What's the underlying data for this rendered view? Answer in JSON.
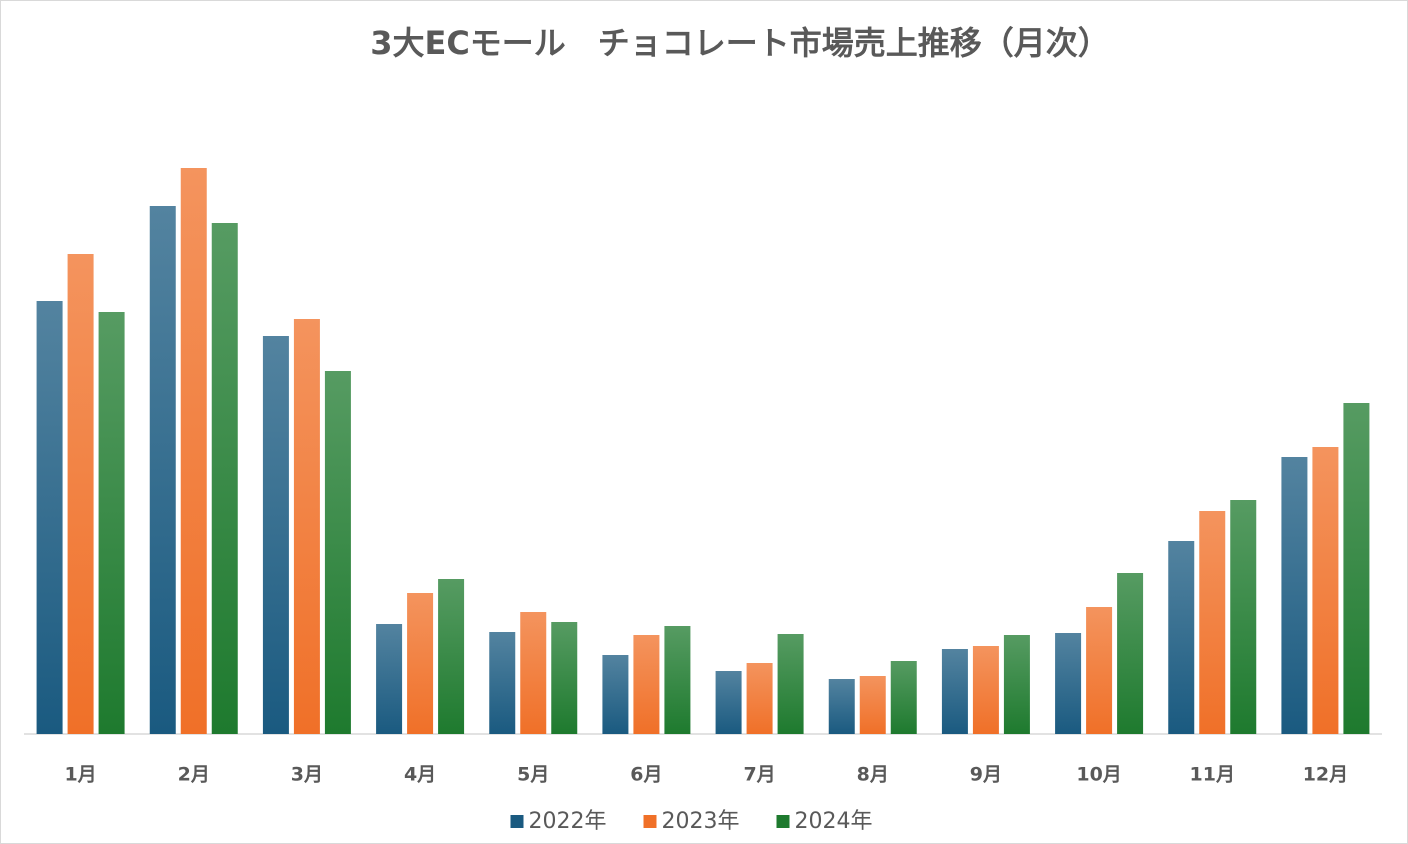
{
  "chart_data": {
    "type": "bar",
    "title": "3大ECモール　チョコレート市場売上推移（月次）",
    "categories": [
      "1月",
      "2月",
      "3月",
      "4月",
      "5月",
      "6月",
      "7月",
      "8月",
      "9月",
      "10月",
      "11月",
      "12月"
    ],
    "series": [
      {
        "name": "2022年",
        "color": "#1a5a80",
        "values": [
          433,
          528,
          398,
          110,
          102,
          79,
          63,
          55,
          85,
          101,
          193,
          277
        ]
      },
      {
        "name": "2023年",
        "color": "#f07028",
        "values": [
          480,
          566,
          415,
          141,
          122,
          99,
          71,
          58,
          88,
          127,
          223,
          287
        ]
      },
      {
        "name": "2024年",
        "color": "#1e7a2e",
        "values": [
          422,
          511,
          363,
          155,
          112,
          108,
          100,
          73,
          99,
          161,
          234,
          331
        ]
      }
    ],
    "legend": "bottom"
  }
}
